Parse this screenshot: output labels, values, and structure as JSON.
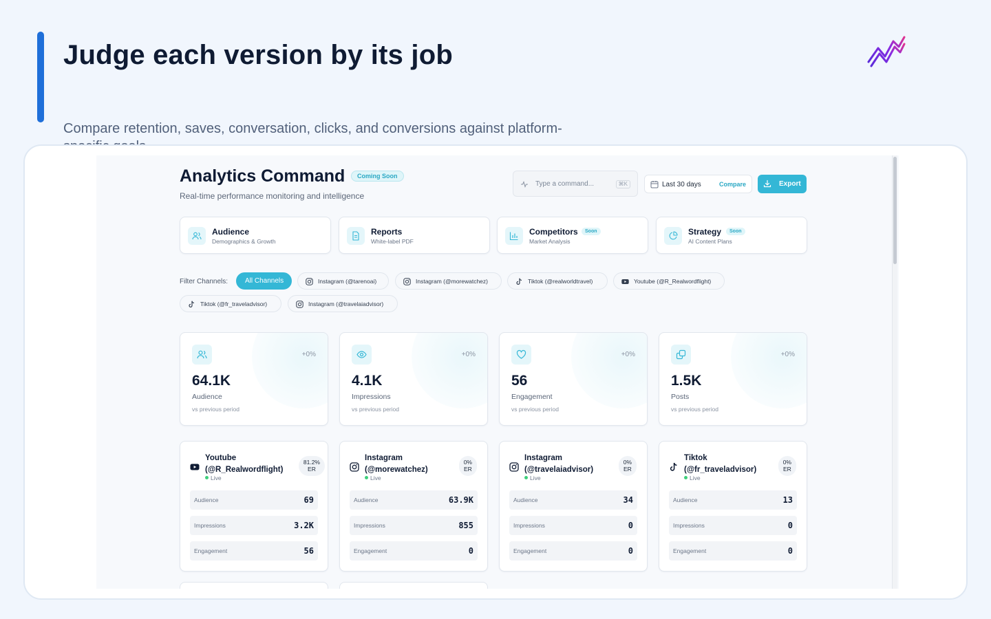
{
  "slide": {
    "title": "Judge each version by its job",
    "subtitle": "Compare retention, saves, conversation, clicks, and conversions against platform-specific goals."
  },
  "app": {
    "title": "Analytics Command",
    "title_badge": "Coming Soon",
    "subtitle": "Real-time performance monitoring and intelligence",
    "command": {
      "placeholder": "Type a command...",
      "shortcut": "⌘K"
    },
    "date_range": {
      "value": "Last 30 days",
      "compare_label": "Compare"
    },
    "export_label": "Export"
  },
  "nav_cards": [
    {
      "title": "Audience",
      "subtitle": "Demographics & Growth",
      "badge": "",
      "icon": "users-icon"
    },
    {
      "title": "Reports",
      "subtitle": "White-label PDF",
      "badge": "",
      "icon": "document-icon"
    },
    {
      "title": "Competitors",
      "subtitle": "Market Analysis",
      "badge": "Soon",
      "icon": "bar-chart-icon"
    },
    {
      "title": "Strategy",
      "subtitle": "AI Content Plans",
      "badge": "Soon",
      "icon": "pie-chart-icon"
    }
  ],
  "filters": {
    "label": "Filter Channels:",
    "chips": [
      {
        "label": "All Channels",
        "active": true
      },
      {
        "label": "Instagram (@tarenoai)",
        "platform": "instagram"
      },
      {
        "label": "Instagram (@morewatchez)",
        "platform": "instagram"
      },
      {
        "label": "Tiktok (@realworldtravel)",
        "platform": "tiktok"
      },
      {
        "label": "Youtube (@R_Realwordflight)",
        "platform": "youtube"
      },
      {
        "label": "Tiktok (@fr_traveladvisor)",
        "platform": "tiktok"
      },
      {
        "label": "Instagram (@travelaiadvisor)",
        "platform": "instagram"
      }
    ]
  },
  "stats": [
    {
      "value": "64.1K",
      "label": "Audience",
      "change": "+0%",
      "note": "vs previous period",
      "icon": "users-icon"
    },
    {
      "value": "4.1K",
      "label": "Impressions",
      "change": "+0%",
      "note": "vs previous period",
      "icon": "eye-icon"
    },
    {
      "value": "56",
      "label": "Engagement",
      "change": "+0%",
      "note": "vs previous period",
      "icon": "heart-icon"
    },
    {
      "value": "1.5K",
      "label": "Posts",
      "change": "+0%",
      "note": "vs previous period",
      "icon": "copy-icon"
    }
  ],
  "accounts": [
    {
      "name": "Youtube (@R_Realwordflight)",
      "platform": "youtube",
      "status": "Live",
      "er": "81.2%",
      "er_unit": "ER",
      "metrics": [
        {
          "label": "Audience",
          "value": "69"
        },
        {
          "label": "Impressions",
          "value": "3.2K"
        },
        {
          "label": "Engagement",
          "value": "56"
        }
      ]
    },
    {
      "name": "Instagram (@morewatchez)",
      "platform": "instagram",
      "status": "Live",
      "er": "0%",
      "er_unit": "ER",
      "metrics": [
        {
          "label": "Audience",
          "value": "63.9K"
        },
        {
          "label": "Impressions",
          "value": "855"
        },
        {
          "label": "Engagement",
          "value": "0"
        }
      ]
    },
    {
      "name": "Instagram (@travelaiadvisor)",
      "platform": "instagram",
      "status": "Live",
      "er": "0%",
      "er_unit": "ER",
      "metrics": [
        {
          "label": "Audience",
          "value": "34"
        },
        {
          "label": "Impressions",
          "value": "0"
        },
        {
          "label": "Engagement",
          "value": "0"
        }
      ]
    },
    {
      "name": "Tiktok (@fr_traveladvisor)",
      "platform": "tiktok",
      "status": "Live",
      "er": "0%",
      "er_unit": "ER",
      "metrics": [
        {
          "label": "Audience",
          "value": "13"
        },
        {
          "label": "Impressions",
          "value": "0"
        },
        {
          "label": "Engagement",
          "value": "0"
        }
      ]
    }
  ],
  "colors": {
    "accent": "#34b7d6",
    "slide_accent": "#1f6fd9",
    "title": "#0f1b33",
    "live": "#3fcf7c"
  }
}
